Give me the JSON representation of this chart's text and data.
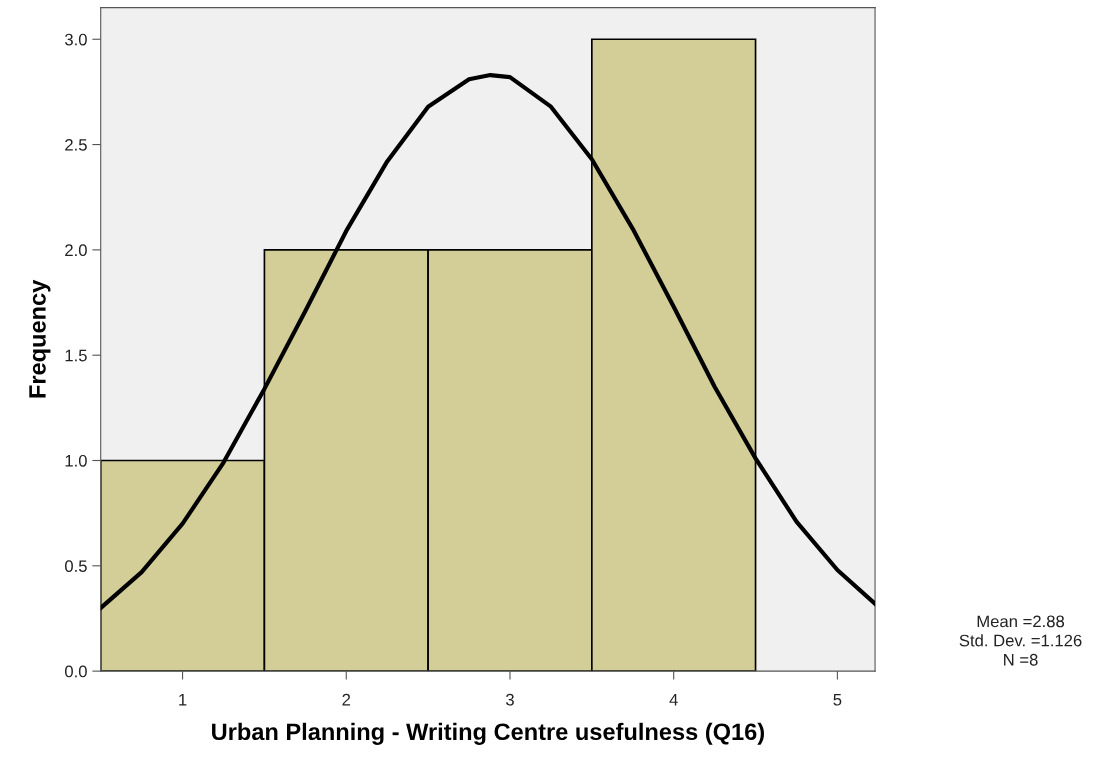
{
  "chart_data": {
    "type": "histogram",
    "xlabel": "Urban Planning - Writing Centre usefulness (Q16)",
    "ylabel": "Frequency",
    "bins": [
      0.5,
      1.5,
      2.5,
      3.5,
      4.5
    ],
    "series": [
      {
        "color": "#d3ce97",
        "values": [
          1,
          2,
          2,
          3
        ]
      },
      {
        "type": "line",
        "color": "#000000",
        "x": [
          0.5,
          0.75,
          1.0,
          1.25,
          1.5,
          1.75,
          2.0,
          2.25,
          2.5,
          2.75,
          2.88,
          3.0,
          3.25,
          3.5,
          3.75,
          4.0,
          4.25,
          4.5,
          4.75,
          5.0,
          5.23
        ],
        "values": [
          0.3,
          0.47,
          0.7,
          0.99,
          1.34,
          1.71,
          2.09,
          2.42,
          2.68,
          2.81,
          2.83,
          2.82,
          2.68,
          2.43,
          2.1,
          1.73,
          1.35,
          1.01,
          0.71,
          0.48,
          0.32
        ]
      }
    ],
    "xlim": [
      0.5,
      5.23
    ],
    "xticks": [
      1,
      2,
      3,
      4,
      5
    ],
    "ylim": [
      0,
      3.15
    ],
    "yticks": [
      {
        "value": 0,
        "label": "0.0"
      },
      {
        "value": 0.5,
        "label": "0.5"
      },
      {
        "value": 1,
        "label": "1.0"
      },
      {
        "value": 1.5,
        "label": "1.5"
      },
      {
        "value": 2,
        "label": "2.0"
      },
      {
        "value": 2.5,
        "label": "2.5"
      },
      {
        "value": 3,
        "label": "3.0"
      }
    ],
    "grid": false,
    "legend": false,
    "annotations": [
      "Mean =2.88",
      "Std. Dev. =1.126",
      "N =8"
    ]
  }
}
